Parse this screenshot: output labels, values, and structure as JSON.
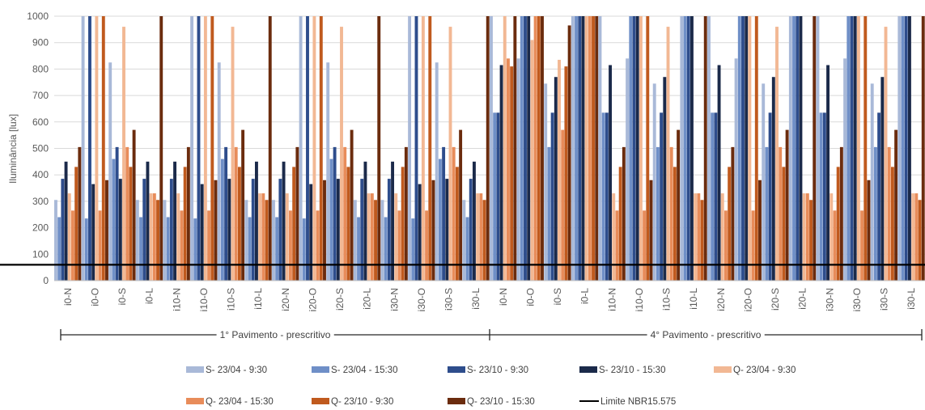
{
  "chart_data": {
    "type": "bar",
    "ylabel": "Iluminância [lux]",
    "ylim": [
      0,
      1000
    ],
    "yticks": [
      0,
      100,
      200,
      300,
      400,
      500,
      600,
      700,
      800,
      900,
      1000
    ],
    "grid": true,
    "legend_position": "bottom",
    "categories": [
      "i0-N",
      "i0-O",
      "i0-S",
      "i0-L",
      "i10-N",
      "i10-O",
      "i10-S",
      "i10-L",
      "i20-N",
      "i20-O",
      "i20-S",
      "i20-L",
      "i30-N",
      "i30-O",
      "i30-S",
      "i30-L",
      "i0-N",
      "i0-O",
      "i0-S",
      "i0-L",
      "i10-N",
      "i10-O",
      "i10-S",
      "i10-L",
      "i20-N",
      "i20-O",
      "i20-S",
      "i20-L",
      "i30-N",
      "i30-O",
      "i30-S",
      "i30-L"
    ],
    "groups": [
      {
        "label": "1° Pavimento - prescritivo",
        "count": 16
      },
      {
        "label": "4° Pavimento - prescritivo",
        "count": 16
      }
    ],
    "series": [
      {
        "name": "S- 23/04 - 9:30",
        "color": "#a9b9d8",
        "values": [
          305,
          1000,
          825,
          305,
          305,
          1000,
          825,
          305,
          305,
          1000,
          825,
          305,
          305,
          1000,
          825,
          305,
          1000,
          840,
          745,
          1000,
          1000,
          840,
          745,
          1000,
          1000,
          840,
          745,
          1000,
          1000,
          840,
          745,
          1000
        ]
      },
      {
        "name": "S- 23/04 - 15:30",
        "color": "#6f8fc7",
        "values": [
          240,
          235,
          460,
          240,
          240,
          235,
          460,
          240,
          240,
          235,
          460,
          240,
          240,
          235,
          460,
          240,
          635,
          1000,
          505,
          1000,
          635,
          1000,
          505,
          1000,
          635,
          1000,
          505,
          1000,
          635,
          1000,
          505,
          1000
        ]
      },
      {
        "name": "S- 23/10 - 9:30",
        "color": "#2e4d8c",
        "values": [
          385,
          1000,
          505,
          385,
          385,
          1000,
          505,
          385,
          385,
          1000,
          505,
          385,
          385,
          1000,
          505,
          385,
          635,
          1000,
          635,
          1000,
          635,
          1000,
          635,
          1000,
          635,
          1000,
          635,
          1000,
          635,
          1000,
          635,
          1000
        ]
      },
      {
        "name": "S- 23/10 - 15:30",
        "color": "#1b2a4a",
        "values": [
          450,
          365,
          385,
          450,
          450,
          365,
          385,
          450,
          450,
          365,
          385,
          450,
          450,
          365,
          385,
          450,
          815,
          1000,
          770,
          1000,
          815,
          1000,
          770,
          1000,
          815,
          1000,
          770,
          1000,
          815,
          1000,
          770,
          1000
        ]
      },
      {
        "name": "Q- 23/04 - 9:30",
        "color": "#f2b894",
        "values": [
          330,
          1000,
          960,
          330,
          330,
          1000,
          960,
          330,
          330,
          1000,
          960,
          330,
          330,
          1000,
          960,
          330,
          1000,
          910,
          835,
          1000,
          330,
          1000,
          960,
          330,
          330,
          1000,
          960,
          330,
          330,
          1000,
          960,
          330
        ]
      },
      {
        "name": "Q- 23/04 - 15:30",
        "color": "#e88c5a",
        "values": [
          265,
          265,
          505,
          330,
          265,
          265,
          505,
          330,
          265,
          265,
          505,
          330,
          265,
          265,
          505,
          330,
          840,
          1000,
          570,
          1000,
          265,
          265,
          505,
          330,
          265,
          265,
          505,
          330,
          265,
          265,
          505,
          330
        ]
      },
      {
        "name": "Q- 23/10 - 9:30",
        "color": "#c05a1e",
        "values": [
          430,
          1000,
          430,
          305,
          430,
          1000,
          430,
          305,
          430,
          1000,
          430,
          305,
          430,
          1000,
          430,
          305,
          810,
          1000,
          810,
          1000,
          430,
          1000,
          430,
          305,
          430,
          1000,
          430,
          305,
          430,
          1000,
          430,
          305
        ]
      },
      {
        "name": "Q- 23/10 - 15:30",
        "color": "#6b2c0e",
        "values": [
          505,
          380,
          570,
          1000,
          505,
          380,
          570,
          1000,
          505,
          380,
          570,
          1000,
          505,
          380,
          570,
          1000,
          1000,
          1000,
          965,
          1000,
          505,
          380,
          570,
          1000,
          505,
          380,
          570,
          1000,
          505,
          380,
          570,
          1000
        ]
      }
    ],
    "reference_line": {
      "name": "Limite NBR15.575",
      "value": 60,
      "color": "#000000"
    }
  }
}
